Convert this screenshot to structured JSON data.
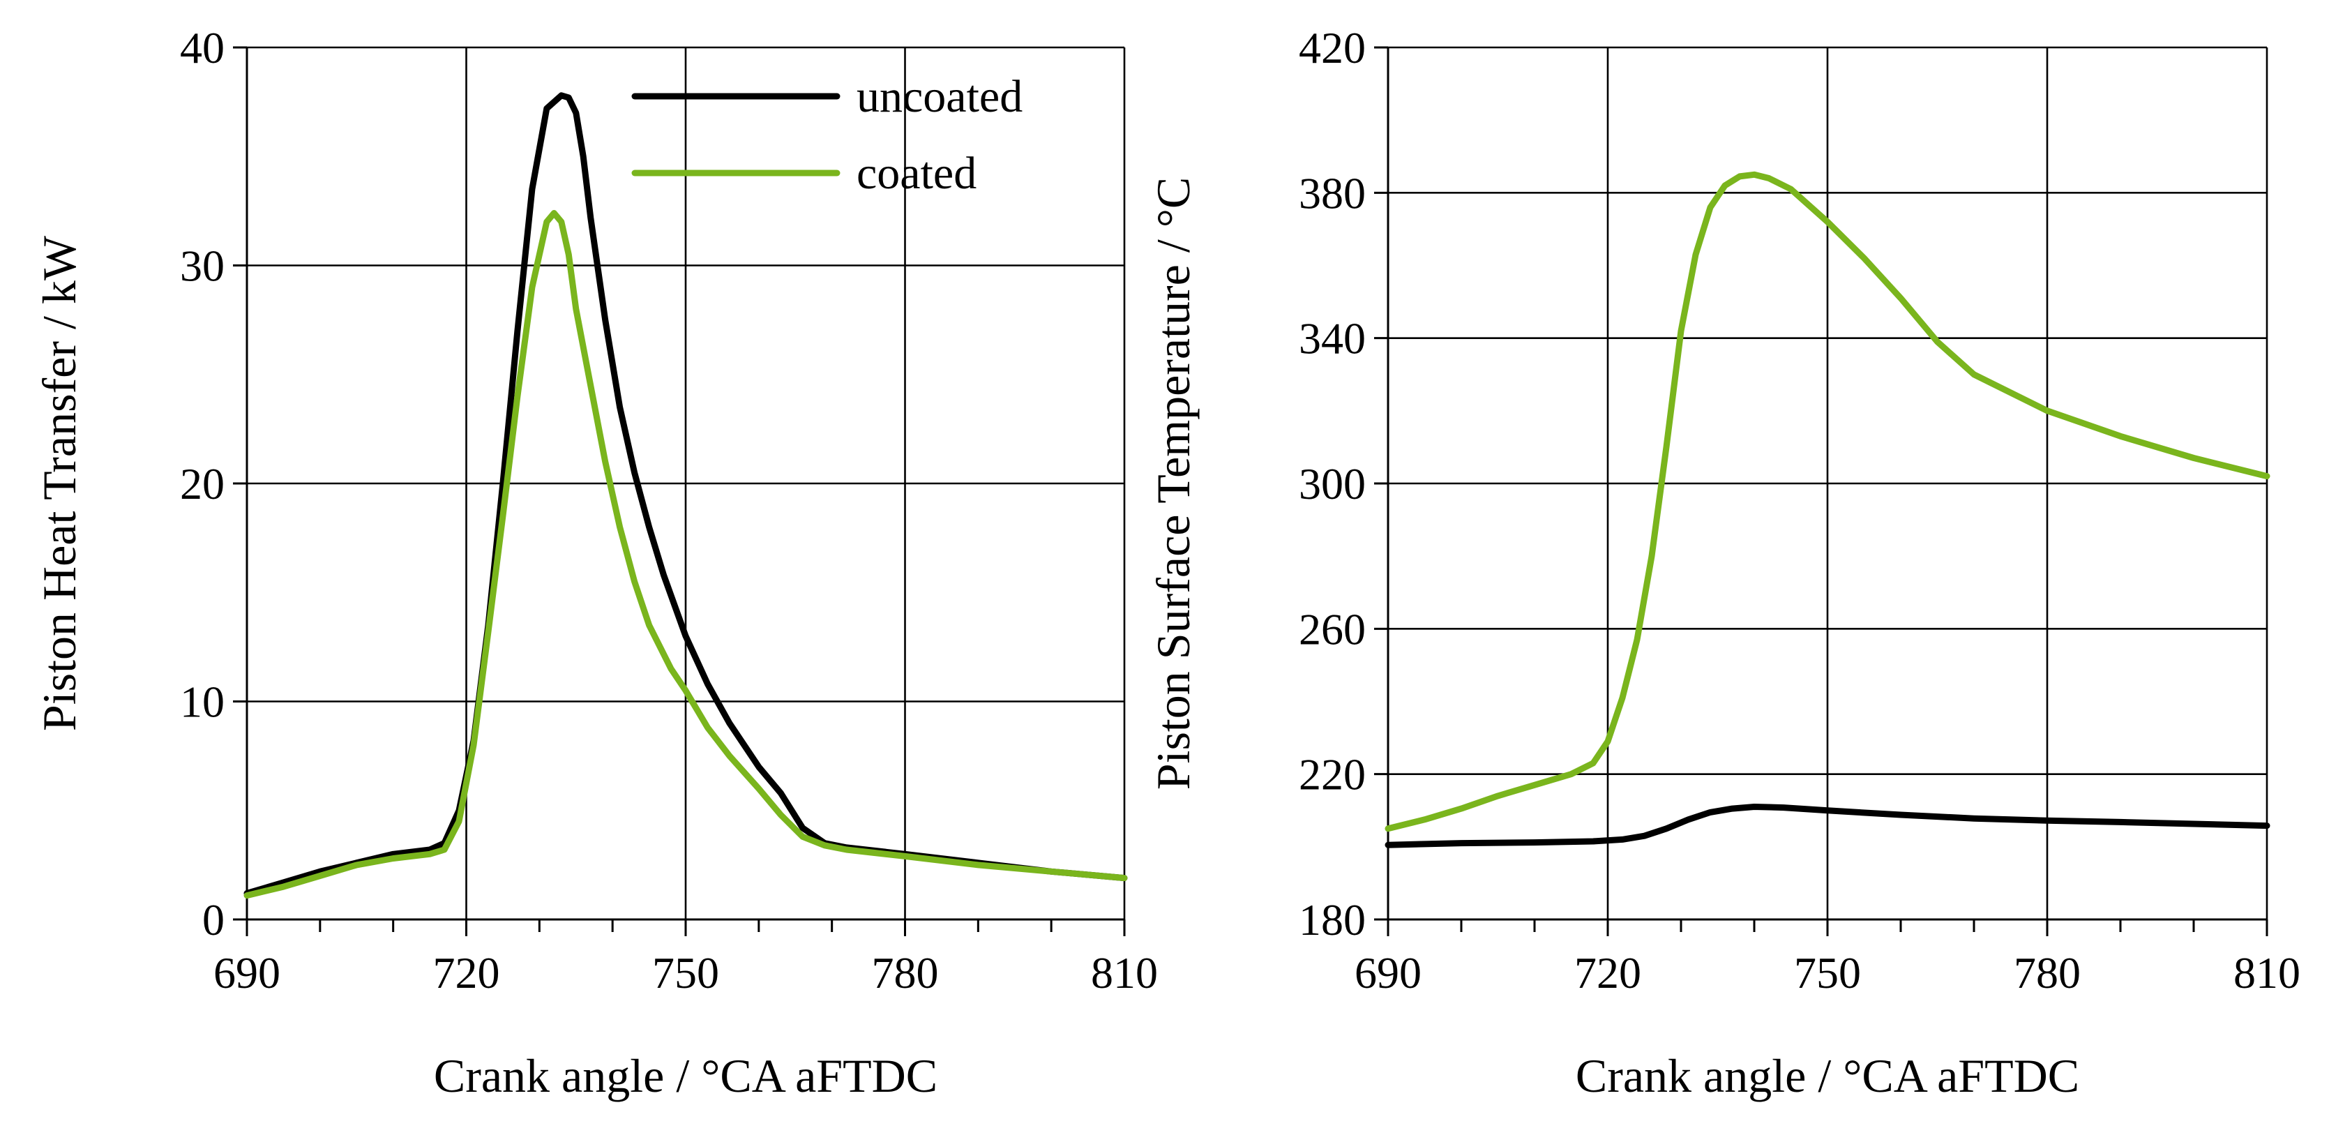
{
  "colors": {
    "uncoated": "#000000",
    "coated": "#7ab51d"
  },
  "chart_data": [
    {
      "type": "line",
      "title": "",
      "xlabel": "Crank angle / °CA aFTDC",
      "ylabel": "Piston Heat Transfer / kW",
      "xlim": [
        690,
        810
      ],
      "ylim": [
        0,
        40
      ],
      "xticks": [
        690,
        720,
        750,
        780,
        810
      ],
      "yticks": [
        0,
        10,
        20,
        30,
        40
      ],
      "xtick_labels": [
        "690",
        "720",
        "750",
        "780",
        "810"
      ],
      "ytick_labels": [
        "0",
        "10",
        "20",
        "30",
        "40"
      ],
      "grid": true,
      "legend": {
        "placement": "top-right",
        "entries": [
          "uncoated",
          "coated"
        ]
      },
      "series": [
        {
          "name": "uncoated",
          "x": [
            690,
            695,
            700,
            705,
            710,
            715,
            717,
            719,
            721,
            723,
            725,
            727,
            729,
            731,
            733,
            734,
            735,
            736,
            737,
            739,
            741,
            743,
            745,
            747,
            750,
            753,
            756,
            760,
            763,
            766,
            769,
            772,
            780,
            790,
            800,
            810
          ],
          "y": [
            1.2,
            1.7,
            2.2,
            2.6,
            3.0,
            3.2,
            3.5,
            5.0,
            8.2,
            13.5,
            20.0,
            27.0,
            33.5,
            37.2,
            37.8,
            37.7,
            37.0,
            35.0,
            32.2,
            27.5,
            23.5,
            20.5,
            18.0,
            15.8,
            13.0,
            10.8,
            9.0,
            7.0,
            5.8,
            4.2,
            3.5,
            3.3,
            3.0,
            2.6,
            2.2,
            1.9
          ]
        },
        {
          "name": "coated",
          "x": [
            690,
            695,
            700,
            705,
            710,
            715,
            717,
            719,
            721,
            723,
            725,
            727,
            729,
            731,
            732,
            733,
            734,
            735,
            737,
            739,
            741,
            743,
            745,
            748,
            750,
            753,
            756,
            760,
            763,
            766,
            769,
            772,
            780,
            790,
            800,
            810
          ],
          "y": [
            1.1,
            1.5,
            2.0,
            2.5,
            2.8,
            3.0,
            3.2,
            4.5,
            8.0,
            13.2,
            18.5,
            24.0,
            29.0,
            32.0,
            32.4,
            32.0,
            30.5,
            28.0,
            24.5,
            21.0,
            18.0,
            15.5,
            13.5,
            11.5,
            10.5,
            8.8,
            7.5,
            6.0,
            4.8,
            3.8,
            3.4,
            3.2,
            2.9,
            2.5,
            2.2,
            1.9
          ]
        }
      ]
    },
    {
      "type": "line",
      "title": "",
      "xlabel": "Crank angle / °CA aFTDC",
      "ylabel": "Piston Surface Temperature / °C",
      "xlim": [
        690,
        810
      ],
      "ylim": [
        180,
        420
      ],
      "xticks": [
        690,
        720,
        750,
        780,
        810
      ],
      "yticks": [
        180,
        220,
        260,
        300,
        340,
        380,
        420
      ],
      "xtick_labels": [
        "690",
        "720",
        "750",
        "780",
        "810"
      ],
      "ytick_labels": [
        "180",
        "220",
        "260",
        "300",
        "340",
        "380",
        "420"
      ],
      "grid": true,
      "legend": null,
      "series": [
        {
          "name": "uncoated",
          "x": [
            690,
            700,
            710,
            718,
            722,
            725,
            728,
            731,
            734,
            737,
            740,
            744,
            750,
            760,
            770,
            780,
            790,
            800,
            810
          ],
          "y": [
            200.5,
            201.0,
            201.2,
            201.5,
            202.0,
            203.0,
            205.0,
            207.5,
            209.5,
            210.5,
            211.0,
            210.8,
            210.0,
            208.8,
            207.8,
            207.2,
            206.8,
            206.3,
            205.8
          ]
        },
        {
          "name": "coated",
          "x": [
            690,
            695,
            700,
            705,
            710,
            715,
            718,
            720,
            722,
            724,
            726,
            728,
            730,
            732,
            734,
            736,
            738,
            740,
            742,
            745,
            750,
            755,
            760,
            765,
            770,
            780,
            790,
            800,
            810
          ],
          "y": [
            205,
            207.5,
            210.5,
            214,
            217,
            220,
            223,
            229,
            241,
            257,
            280,
            310,
            342,
            363,
            376,
            382,
            384.5,
            385,
            384,
            381,
            372,
            362,
            351,
            339,
            330,
            320,
            313,
            307,
            302
          ]
        }
      ]
    }
  ]
}
